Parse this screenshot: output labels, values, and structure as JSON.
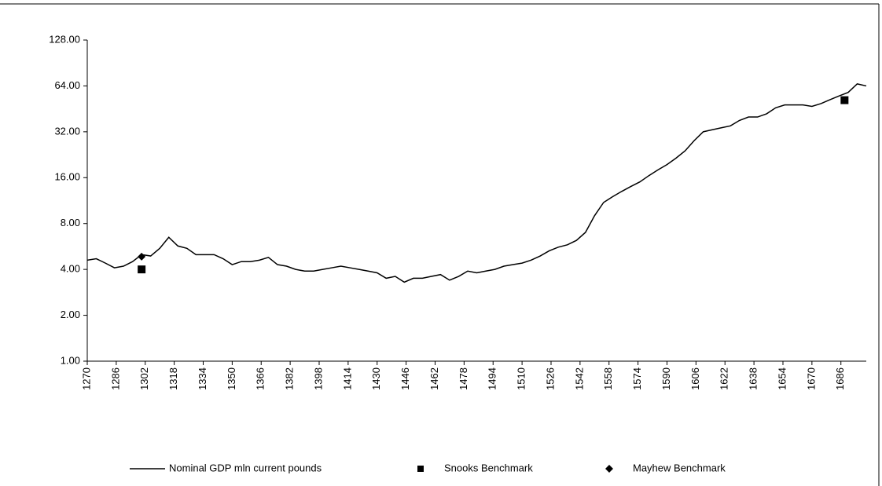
{
  "chart_data": {
    "type": "line",
    "log_scale": true,
    "xlim": [
      1270,
      1700
    ],
    "ylim": [
      1,
      128
    ],
    "xticks": [
      1270,
      1286,
      1302,
      1318,
      1334,
      1350,
      1366,
      1382,
      1398,
      1414,
      1430,
      1446,
      1462,
      1478,
      1494,
      1510,
      1526,
      1542,
      1558,
      1574,
      1590,
      1606,
      1622,
      1638,
      1654,
      1670,
      1686
    ],
    "yticks": [
      {
        "value": 1,
        "label": "1.00"
      },
      {
        "value": 2,
        "label": "2.00"
      },
      {
        "value": 4,
        "label": "4.00"
      },
      {
        "value": 8,
        "label": "8.00"
      },
      {
        "value": 16,
        "label": "16.00"
      },
      {
        "value": 32,
        "label": "32.00"
      },
      {
        "value": 64,
        "label": "64.00"
      },
      {
        "value": 128,
        "label": "128.00"
      }
    ],
    "legend": "bottom",
    "series": [
      {
        "name": "Nominal GDP mln current pounds",
        "color": "#000000",
        "marker": "line",
        "x": [
          1270,
          1275,
          1280,
          1285,
          1290,
          1295,
          1300,
          1305,
          1310,
          1315,
          1320,
          1325,
          1330,
          1335,
          1340,
          1345,
          1350,
          1355,
          1360,
          1365,
          1370,
          1375,
          1380,
          1385,
          1390,
          1395,
          1400,
          1405,
          1410,
          1415,
          1420,
          1425,
          1430,
          1435,
          1440,
          1445,
          1450,
          1455,
          1460,
          1465,
          1470,
          1475,
          1480,
          1485,
          1490,
          1495,
          1500,
          1505,
          1510,
          1515,
          1520,
          1525,
          1530,
          1535,
          1540,
          1545,
          1550,
          1555,
          1560,
          1565,
          1570,
          1575,
          1580,
          1585,
          1590,
          1595,
          1600,
          1605,
          1610,
          1615,
          1620,
          1625,
          1630,
          1635,
          1640,
          1645,
          1650,
          1655,
          1660,
          1665,
          1670,
          1675,
          1680,
          1685,
          1690,
          1695,
          1700
        ],
        "values": [
          4.6,
          4.7,
          4.4,
          4.1,
          4.2,
          4.5,
          5.0,
          4.9,
          5.5,
          6.5,
          5.7,
          5.5,
          5.0,
          5.0,
          5.0,
          4.7,
          4.3,
          4.5,
          4.5,
          4.6,
          4.8,
          4.3,
          4.2,
          4.0,
          3.9,
          3.9,
          4.0,
          4.1,
          4.2,
          4.1,
          4.0,
          3.9,
          3.8,
          3.5,
          3.6,
          3.3,
          3.5,
          3.5,
          3.6,
          3.7,
          3.4,
          3.6,
          3.9,
          3.8,
          3.9,
          4.0,
          4.2,
          4.3,
          4.4,
          4.6,
          4.9,
          5.3,
          5.6,
          5.8,
          6.2,
          7.0,
          9.0,
          11.0,
          12.0,
          13.0,
          14.0,
          15.0,
          16.5,
          18.0,
          19.5,
          21.5,
          24.0,
          28.0,
          32.0,
          33.0,
          34.0,
          35.0,
          38.0,
          40.0,
          40.0,
          42.0,
          46.0,
          48.0,
          48.0,
          48.0,
          47.0,
          49.0,
          52.0,
          55.0,
          58.0,
          66.0,
          64.0
        ]
      },
      {
        "name": "Snooks Benchmark",
        "color": "#000000",
        "marker": "square",
        "x": [
          1300,
          1688
        ],
        "values": [
          4.0,
          51.6
        ]
      },
      {
        "name": "Mayhew Benchmark",
        "color": "#000000",
        "marker": "diamond",
        "x": [
          1300
        ],
        "values": [
          4.85
        ]
      }
    ]
  }
}
